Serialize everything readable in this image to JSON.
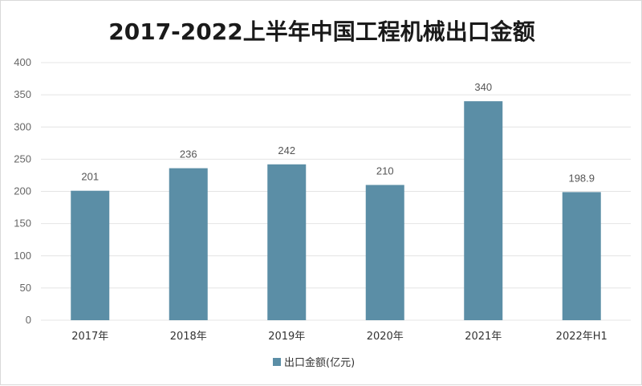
{
  "chart_data": {
    "type": "bar",
    "title": "2017-2022上半年中国工程机械出口金额",
    "categories": [
      "2017年",
      "2018年",
      "2019年",
      "2020年",
      "2021年",
      "2022年H1"
    ],
    "series": [
      {
        "name": "出口金额(亿元)",
        "values": [
          201,
          236,
          242,
          210,
          340,
          198.9
        ],
        "color": "#5b8ea6"
      }
    ],
    "data_labels": [
      "201",
      "236",
      "242",
      "210",
      "340",
      "198.9"
    ],
    "ylim": [
      0,
      400
    ],
    "yticks": [
      0,
      50,
      100,
      150,
      200,
      250,
      300,
      350,
      400
    ],
    "grid": true,
    "legend_position": "bottom"
  }
}
